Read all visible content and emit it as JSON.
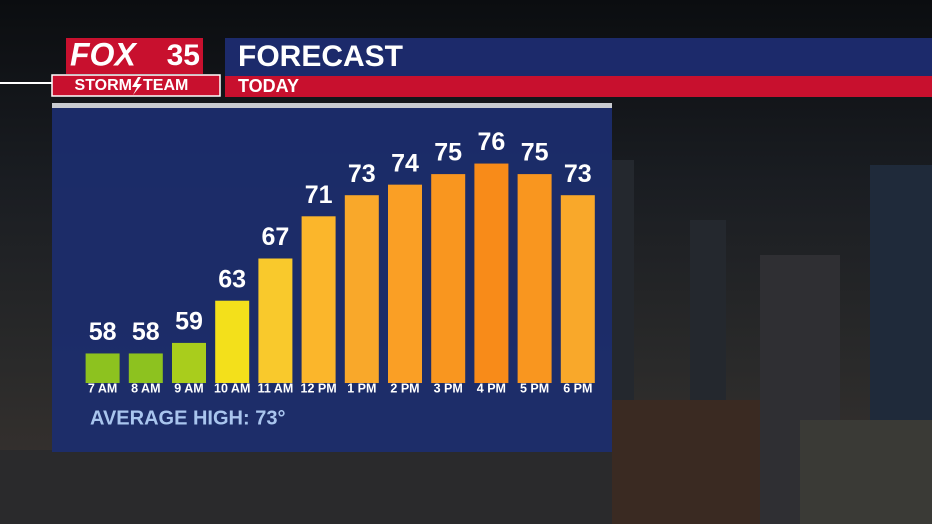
{
  "chart_data": {
    "type": "bar",
    "title": "FORECAST",
    "subtitle": "TODAY",
    "logo": {
      "brand": "FOX",
      "channel": "35",
      "team_left": "STORM",
      "team_right": "TEAM"
    },
    "annotation": "AVERAGE HIGH: 73°",
    "categories": [
      "7 AM",
      "8 AM",
      "9 AM",
      "10 AM",
      "11 AM",
      "12 PM",
      "1 PM",
      "2 PM",
      "3 PM",
      "4 PM",
      "5 PM",
      "6 PM"
    ],
    "values": [
      58,
      58,
      59,
      63,
      67,
      71,
      73,
      74,
      75,
      76,
      75,
      73
    ],
    "colors": [
      "#8dc21f",
      "#8dc21f",
      "#a9cd1c",
      "#f3e01b",
      "#f9c92c",
      "#fbb62b",
      "#f9a82a",
      "#fa9f25",
      "#f9961f",
      "#f88b19",
      "#f9961f",
      "#f9a82a"
    ],
    "ylim": [
      55.2,
      77
    ]
  }
}
